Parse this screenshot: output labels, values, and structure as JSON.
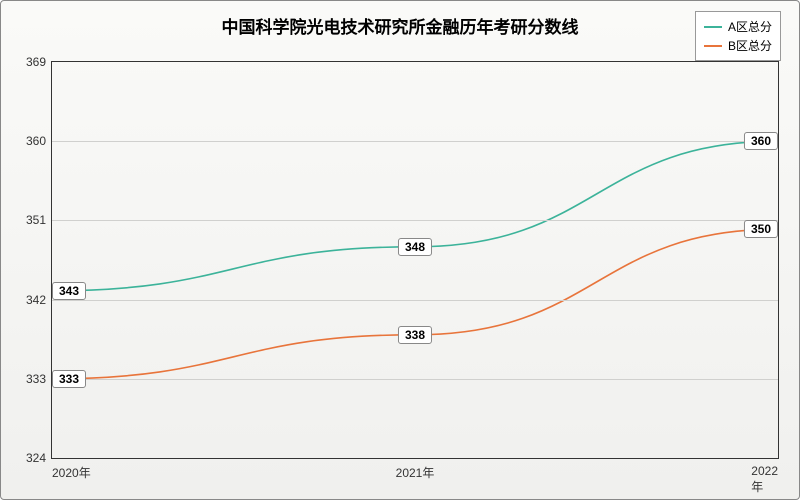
{
  "chart": {
    "type": "line",
    "title": "中国科学院光电技术研究所金融历年考研分数线",
    "title_fontsize": 17,
    "background_gradient": [
      "#fafaf8",
      "#f0f0ee"
    ],
    "border_color": "#333333",
    "grid_color": "#d0d0ce",
    "text_color": "#333333",
    "label_box_bg": "#ffffff",
    "label_box_border": "#888888",
    "label_fontsize": 12,
    "xlim": [
      2020,
      2022
    ],
    "ylim": [
      324,
      369
    ],
    "yticks": [
      324,
      333,
      342,
      351,
      360,
      369
    ],
    "ytick_step": 9,
    "xticks": [
      2020,
      2021,
      2022
    ],
    "xtick_labels": [
      "2020年",
      "2021年",
      "2022年"
    ],
    "line_width": 1.6,
    "series": [
      {
        "name": "A区总分",
        "color": "#3cb39a",
        "values": [
          343,
          348,
          360
        ]
      },
      {
        "name": "B区总分",
        "color": "#e8743b",
        "values": [
          333,
          338,
          350
        ]
      }
    ],
    "legend": {
      "position": "top-right",
      "bg": "#ffffff",
      "border": "#999999",
      "fontsize": 12
    }
  }
}
